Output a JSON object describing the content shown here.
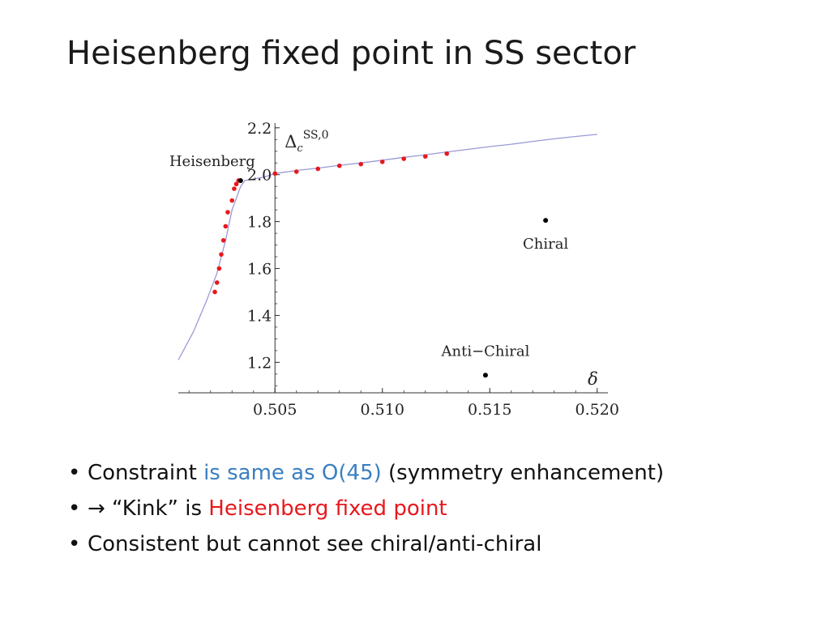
{
  "slide": {
    "title": "Heisenberg fixed point in SS sector",
    "bullets": [
      {
        "parts": [
          {
            "text": "Constraint ",
            "color": "default"
          },
          {
            "text": "is same as O(45)",
            "color": "blue"
          },
          {
            "text": " (symmetry enhancement)",
            "color": "default"
          }
        ]
      },
      {
        "parts": [
          {
            "text": "→ “Kink” is ",
            "color": "default"
          },
          {
            "text": "Heisenberg fixed point",
            "color": "red"
          }
        ]
      },
      {
        "parts": [
          {
            "text": "Consistent but cannot see chiral/anti-chiral",
            "color": "default"
          }
        ]
      }
    ]
  },
  "colors": {
    "accent_blue": "#3a7fc1",
    "accent_red": "#e8181d",
    "boundary_curve": "#9a9ad8",
    "data_points": "#e8181d"
  },
  "chart_data": {
    "type": "scatter",
    "xlabel": "δ",
    "ylabel_main": "Δ",
    "ylabel_sub": "c",
    "ylabel_sup": "SS,0",
    "xlim": [
      0.5005,
      0.5205
    ],
    "ylim": [
      1.07,
      2.22
    ],
    "x_ticks": [
      {
        "value": 0.505,
        "label": "0.505"
      },
      {
        "value": 0.51,
        "label": "0.510"
      },
      {
        "value": 0.515,
        "label": "0.515"
      },
      {
        "value": 0.52,
        "label": "0.520"
      }
    ],
    "y_ticks": [
      {
        "value": 1.2,
        "label": "1.2"
      },
      {
        "value": 1.4,
        "label": "1.4"
      },
      {
        "value": 1.6,
        "label": "1.6"
      },
      {
        "value": 1.8,
        "label": "1.8"
      },
      {
        "value": 2.0,
        "label": "2.0"
      },
      {
        "value": 2.2,
        "label": "2.2"
      }
    ],
    "y_axis_at_x": 0.505,
    "boundary_curve": [
      [
        0.5005,
        1.21
      ],
      [
        0.5012,
        1.33
      ],
      [
        0.5018,
        1.46
      ],
      [
        0.5023,
        1.58
      ],
      [
        0.5027,
        1.72
      ],
      [
        0.503,
        1.85
      ],
      [
        0.5034,
        1.95
      ],
      [
        0.5036,
        1.975
      ],
      [
        0.5045,
        1.99
      ],
      [
        0.505,
        2.005
      ],
      [
        0.506,
        2.018
      ],
      [
        0.507,
        2.028
      ],
      [
        0.508,
        2.04
      ],
      [
        0.509,
        2.05
      ],
      [
        0.51,
        2.062
      ],
      [
        0.511,
        2.074
      ],
      [
        0.512,
        2.085
      ],
      [
        0.513,
        2.097
      ],
      [
        0.514,
        2.108
      ],
      [
        0.515,
        2.12
      ],
      [
        0.516,
        2.13
      ],
      [
        0.517,
        2.142
      ],
      [
        0.518,
        2.153
      ],
      [
        0.519,
        2.163
      ],
      [
        0.52,
        2.172
      ]
    ],
    "series": [
      {
        "name": "",
        "color": "#e8181d",
        "points": [
          [
            0.5022,
            1.5
          ],
          [
            0.5023,
            1.54
          ],
          [
            0.5024,
            1.6
          ],
          [
            0.5025,
            1.66
          ],
          [
            0.5026,
            1.72
          ],
          [
            0.5027,
            1.78
          ],
          [
            0.5028,
            1.84
          ],
          [
            0.503,
            1.89
          ],
          [
            0.5031,
            1.94
          ],
          [
            0.5032,
            1.96
          ],
          [
            0.5033,
            1.975
          ],
          [
            0.505,
            2.005
          ],
          [
            0.506,
            2.013
          ],
          [
            0.507,
            2.025
          ],
          [
            0.508,
            2.038
          ],
          [
            0.509,
            2.045
          ],
          [
            0.51,
            2.055
          ],
          [
            0.511,
            2.068
          ],
          [
            0.512,
            2.078
          ],
          [
            0.513,
            2.09
          ]
        ]
      }
    ],
    "annotations": [
      {
        "label": "Heisenberg",
        "x": 0.5034,
        "y": 1.975,
        "text_anchor": "left-above"
      },
      {
        "label": "Chiral",
        "x": 0.5176,
        "y": 1.805,
        "text_anchor": "below"
      },
      {
        "label": "Anti−Chiral",
        "x": 0.5148,
        "y": 1.145,
        "text_anchor": "above"
      }
    ]
  }
}
